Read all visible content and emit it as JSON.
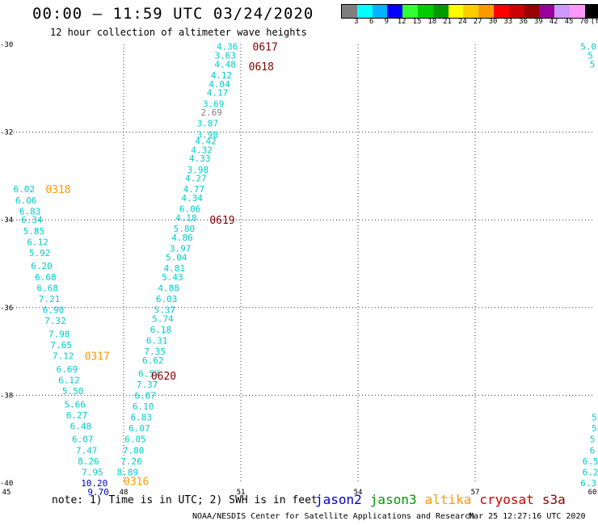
{
  "title": "00:00 – 11:59 UTC 03/24/2020",
  "subtitle": "12 hour collection of altimeter wave heights",
  "colorbar": {
    "labels": [
      "3",
      "6",
      "9",
      "12",
      "15",
      "18",
      "21",
      "24",
      "27",
      "30",
      "33",
      "36",
      "39",
      "42",
      "45",
      "70",
      "(ft)"
    ],
    "colors": [
      "#7f7f7f",
      "#00ffff",
      "#00b2ff",
      "#0000ff",
      "#33ff33",
      "#00cc00",
      "#009900",
      "#ffff00",
      "#ffcc00",
      "#ff9900",
      "#ff0000",
      "#cc0000",
      "#990000",
      "#990099",
      "#cc99ff",
      "#ff99ff",
      "#000000"
    ]
  },
  "note": "note: 1) Time is in UTC; 2) SWH is in feet",
  "legend": [
    {
      "name": "jason2",
      "color": "#0000cc"
    },
    {
      "name": "jason3",
      "color": "#009900"
    },
    {
      "name": "altika",
      "color": "#ff9900"
    },
    {
      "name": "cryosat",
      "color": "#cc0000"
    },
    {
      "name": "s3a",
      "color": "#880000"
    }
  ],
  "credit": "NOAA/NESDIS Center for Satellite Applications and Research",
  "credit_time": "Mar 25 12:27:16 UTC 2020",
  "chart_data": {
    "type": "scatter",
    "x_ticks": [
      "45",
      "48",
      "51",
      "54",
      "57",
      "60"
    ],
    "y_ticks": [
      "-30",
      "-32",
      "-34",
      "-36",
      "-38",
      "-40"
    ],
    "xlim": [
      45,
      60
    ],
    "ylim": [
      -40,
      -30
    ],
    "grid": true,
    "pass_labels": [
      {
        "text": "0617",
        "x": 51.3,
        "y": -30.05,
        "color": "#880000"
      },
      {
        "text": "0618",
        "x": 51.2,
        "y": -30.5,
        "color": "#880000"
      },
      {
        "text": "0619",
        "x": 50.2,
        "y": -34.0,
        "color": "#880000"
      },
      {
        "text": "0620",
        "x": 48.7,
        "y": -37.55,
        "color": "#880000"
      },
      {
        "text": "0318",
        "x": 46.0,
        "y": -33.3,
        "color": "#ff9900"
      },
      {
        "text": "0317",
        "x": 47.0,
        "y": -37.1,
        "color": "#ff9900"
      },
      {
        "text": "0316",
        "x": 48.0,
        "y": -39.95,
        "color": "#ff9900"
      }
    ],
    "series": [
      {
        "color": "#00cccc",
        "points": [
          {
            "x": 50.65,
            "y": -30.05,
            "v": "4.36"
          },
          {
            "x": 50.6,
            "y": -30.25,
            "v": "3.63"
          },
          {
            "x": 50.6,
            "y": -30.45,
            "v": "4.48"
          },
          {
            "x": 50.5,
            "y": -30.7,
            "v": "4.12"
          },
          {
            "x": 50.45,
            "y": -30.9,
            "v": "4.04"
          },
          {
            "x": 50.4,
            "y": -31.1,
            "v": "4.17"
          },
          {
            "x": 50.3,
            "y": -31.35,
            "v": "3.69"
          },
          {
            "x": 50.25,
            "y": -31.55,
            "v": "2.69",
            "color": "#7f7f7f"
          },
          {
            "x": 50.15,
            "y": -31.8,
            "v": "3.87"
          },
          {
            "x": 50.15,
            "y": -32.05,
            "v": "3.98"
          },
          {
            "x": 50.1,
            "y": -32.2,
            "v": "4.42"
          },
          {
            "x": 50.0,
            "y": -32.4,
            "v": "4.32"
          },
          {
            "x": 49.95,
            "y": -32.6,
            "v": "4.33"
          },
          {
            "x": 49.9,
            "y": -32.85,
            "v": "3.98"
          },
          {
            "x": 49.85,
            "y": -33.05,
            "v": "4.27"
          },
          {
            "x": 49.8,
            "y": -33.3,
            "v": "4.77"
          },
          {
            "x": 49.75,
            "y": -33.5,
            "v": "4.34"
          },
          {
            "x": 49.7,
            "y": -33.75,
            "v": "6.06"
          },
          {
            "x": 49.6,
            "y": -33.95,
            "v": "4.18"
          },
          {
            "x": 49.55,
            "y": -34.2,
            "v": "5.80"
          },
          {
            "x": 49.5,
            "y": -34.4,
            "v": "4.86"
          },
          {
            "x": 49.45,
            "y": -34.65,
            "v": "3.97"
          },
          {
            "x": 49.35,
            "y": -34.85,
            "v": "5.04"
          },
          {
            "x": 49.3,
            "y": -35.1,
            "v": "4.81"
          },
          {
            "x": 49.25,
            "y": -35.3,
            "v": "5.43"
          },
          {
            "x": 49.15,
            "y": -35.55,
            "v": "4.88"
          },
          {
            "x": 49.1,
            "y": -35.8,
            "v": "6.03"
          },
          {
            "x": 49.05,
            "y": -36.05,
            "v": "5.37"
          },
          {
            "x": 49.0,
            "y": -36.25,
            "v": "5.74"
          },
          {
            "x": 48.95,
            "y": -36.5,
            "v": "6.18"
          },
          {
            "x": 48.85,
            "y": -36.75,
            "v": "6.31"
          },
          {
            "x": 48.8,
            "y": -37.0,
            "v": "7.35"
          },
          {
            "x": 48.75,
            "y": -37.2,
            "v": "6.62"
          },
          {
            "x": 48.65,
            "y": -37.5,
            "v": "6.57"
          },
          {
            "x": 48.6,
            "y": -37.75,
            "v": "7.37"
          },
          {
            "x": 48.55,
            "y": -38.0,
            "v": "6.87"
          },
          {
            "x": 48.5,
            "y": -38.25,
            "v": "6.10"
          },
          {
            "x": 48.45,
            "y": -38.5,
            "v": "6.83"
          },
          {
            "x": 48.4,
            "y": -38.75,
            "v": "6.07"
          },
          {
            "x": 48.3,
            "y": -39.0,
            "v": "6.05"
          },
          {
            "x": 48.25,
            "y": -39.25,
            "v": "7.80"
          },
          {
            "x": 48.2,
            "y": -39.5,
            "v": "7.26"
          },
          {
            "x": 48.1,
            "y": -39.75,
            "v": "8.89"
          }
        ]
      },
      {
        "color": "#00cccc",
        "points": [
          {
            "x": 45.45,
            "y": -33.3,
            "v": "6.02"
          },
          {
            "x": 45.5,
            "y": -33.55,
            "v": "6.06"
          },
          {
            "x": 45.6,
            "y": -33.8,
            "v": "6.83"
          },
          {
            "x": 45.65,
            "y": -34.0,
            "v": "6.34"
          },
          {
            "x": 45.7,
            "y": -34.25,
            "v": "5.85"
          },
          {
            "x": 45.8,
            "y": -34.5,
            "v": "6.12"
          },
          {
            "x": 45.85,
            "y": -34.75,
            "v": "5.92"
          },
          {
            "x": 45.9,
            "y": -35.05,
            "v": "6.20"
          },
          {
            "x": 46.0,
            "y": -35.3,
            "v": "6.68"
          },
          {
            "x": 46.05,
            "y": -35.55,
            "v": "6.68"
          },
          {
            "x": 46.1,
            "y": -35.8,
            "v": "7.21"
          },
          {
            "x": 46.2,
            "y": -36.05,
            "v": "6.90"
          },
          {
            "x": 46.25,
            "y": -36.3,
            "v": "7.32"
          },
          {
            "x": 46.35,
            "y": -36.6,
            "v": "7.98"
          },
          {
            "x": 46.4,
            "y": -36.85,
            "v": "7.65"
          },
          {
            "x": 46.45,
            "y": -37.1,
            "v": "7.12"
          },
          {
            "x": 46.55,
            "y": -37.4,
            "v": "6.69"
          },
          {
            "x": 46.6,
            "y": -37.65,
            "v": "6.12"
          },
          {
            "x": 46.7,
            "y": -37.9,
            "v": "5.50"
          },
          {
            "x": 46.75,
            "y": -38.2,
            "v": "5.66"
          },
          {
            "x": 46.8,
            "y": -38.45,
            "v": "6.27"
          },
          {
            "x": 46.9,
            "y": -38.7,
            "v": "6.48"
          },
          {
            "x": 46.95,
            "y": -39.0,
            "v": "6.07"
          },
          {
            "x": 47.05,
            "y": -39.25,
            "v": "7.47"
          },
          {
            "x": 47.1,
            "y": -39.5,
            "v": "8.26"
          },
          {
            "x": 47.2,
            "y": -39.75,
            "v": "7.95"
          },
          {
            "x": 47.25,
            "y": -40.0,
            "v": "10.20",
            "color": "#0000cc"
          },
          {
            "x": 47.35,
            "y": -40.2,
            "v": "9.70",
            "color": "#0000cc"
          }
        ]
      },
      {
        "color": "#00cccc",
        "points": [
          {
            "x": 59.9,
            "y": -30.05,
            "v": "5.0"
          },
          {
            "x": 59.95,
            "y": -30.25,
            "v": "5"
          },
          {
            "x": 60.0,
            "y": -30.45,
            "v": "5"
          },
          {
            "x": 60.05,
            "y": -38.5,
            "v": "5"
          },
          {
            "x": 60.05,
            "y": -38.75,
            "v": "5"
          },
          {
            "x": 60.0,
            "y": -39.0,
            "v": "5"
          },
          {
            "x": 60.0,
            "y": -39.25,
            "v": "6"
          },
          {
            "x": 59.95,
            "y": -39.5,
            "v": "6.5"
          },
          {
            "x": 59.95,
            "y": -39.75,
            "v": "6.2"
          },
          {
            "x": 59.9,
            "y": -40.0,
            "v": "6.3"
          }
        ]
      }
    ]
  }
}
